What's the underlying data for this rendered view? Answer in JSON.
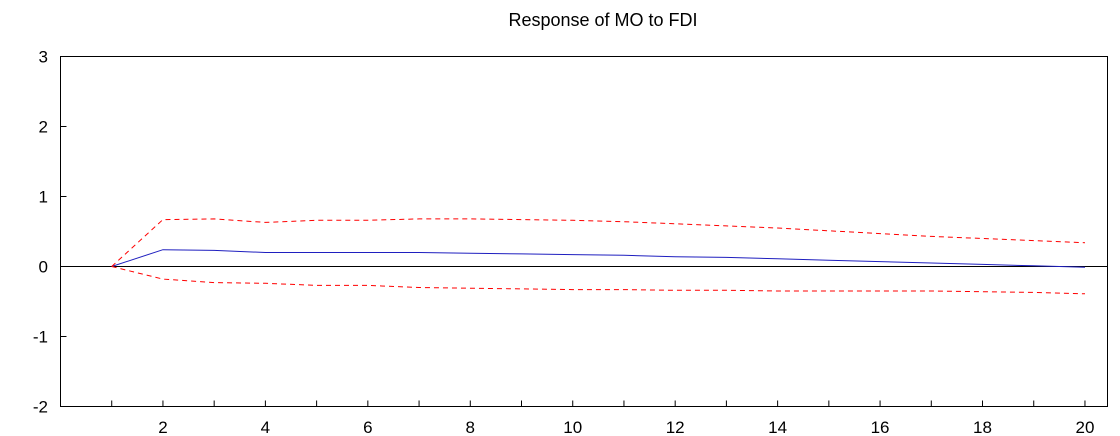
{
  "chart_data": {
    "type": "line",
    "title": "Response of MO to FDI",
    "xlabel": "",
    "ylabel": "",
    "xlim": [
      1,
      20
    ],
    "ylim": [
      -2,
      3
    ],
    "x": [
      1,
      2,
      3,
      4,
      5,
      6,
      7,
      8,
      9,
      10,
      11,
      12,
      13,
      14,
      15,
      16,
      17,
      18,
      19,
      20
    ],
    "x_ticks": [
      2,
      4,
      6,
      8,
      10,
      12,
      14,
      16,
      18,
      20
    ],
    "y_ticks": [
      -2,
      -1,
      0,
      1,
      2,
      3
    ],
    "grid": false,
    "legend": "none",
    "zero_line": true,
    "series": [
      {
        "role": "response",
        "style": "solid",
        "color": "#1f1fbf",
        "values": [
          0.0,
          0.24,
          0.23,
          0.2,
          0.2,
          0.2,
          0.2,
          0.19,
          0.18,
          0.17,
          0.16,
          0.14,
          0.13,
          0.11,
          0.09,
          0.07,
          0.05,
          0.03,
          0.01,
          -0.01
        ]
      },
      {
        "role": "upper-band",
        "style": "dashed",
        "color": "#ff0000",
        "values": [
          0.0,
          0.67,
          0.68,
          0.63,
          0.66,
          0.66,
          0.68,
          0.68,
          0.67,
          0.66,
          0.64,
          0.61,
          0.58,
          0.55,
          0.51,
          0.47,
          0.43,
          0.4,
          0.37,
          0.34
        ]
      },
      {
        "role": "lower-band",
        "style": "dashed",
        "color": "#ff0000",
        "values": [
          0.0,
          -0.18,
          -0.23,
          -0.24,
          -0.27,
          -0.27,
          -0.3,
          -0.31,
          -0.32,
          -0.33,
          -0.33,
          -0.34,
          -0.34,
          -0.35,
          -0.35,
          -0.35,
          -0.35,
          -0.36,
          -0.37,
          -0.39
        ]
      }
    ]
  }
}
